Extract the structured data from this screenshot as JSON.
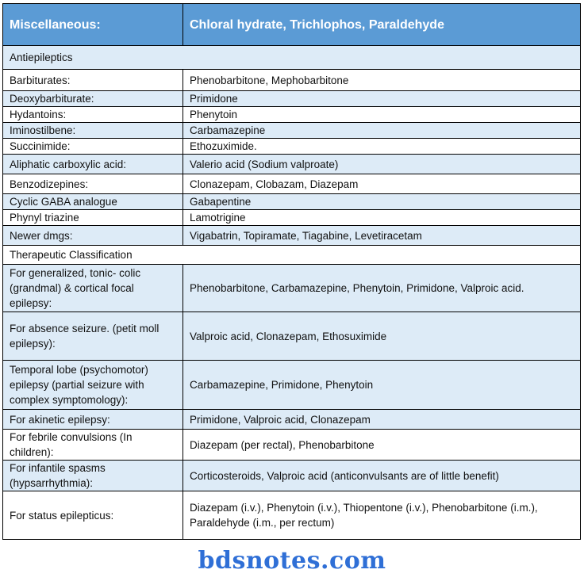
{
  "header": {
    "left": "Miscellaneous:",
    "right": "Chloral hydrate, Trichlophos, Paraldehyde"
  },
  "colors": {
    "header_bg": "#5b9bd5",
    "row_light": "#ddebf7",
    "watermark": "#2f6fd6"
  },
  "rows": [
    {
      "section": "Antiepileptics"
    },
    {
      "class": "Barbiturates:",
      "drugs": "Phenobarbitone, Mephobarbitone"
    },
    {
      "class": "Deoxybarbiturate:",
      "drugs": "Primidone"
    },
    {
      "class": "Hydantoins:",
      "drugs": "Phenytoin"
    },
    {
      "class": "Iminostilbene:",
      "drugs": "Carbamazepine"
    },
    {
      "class": "Succinimide:",
      "drugs": "Ethozuximide."
    },
    {
      "class": "Aliphatic carboxylic acid:",
      "drugs": "Valerio acid (Sodium valproate)"
    },
    {
      "class": "Benzodizepines:",
      "drugs": "Clonazepam, Clobazam, Diazepam"
    },
    {
      "class": "Cyclic GABA analogue",
      "drugs": "Gabapentine"
    },
    {
      "class": "Phynyl triazine",
      "drugs": "Lamotrigine"
    },
    {
      "class": "Newer dmgs:",
      "drugs": "Vigabatrin, Topiramate, Tiagabine, Levetiracetam"
    },
    {
      "section": "Therapeutic Classification"
    },
    {
      "class": "For generalized, tonic- colic (grandmal) & cortical focal epilepsy:",
      "drugs": "Phenobarbitone, Carbamazepine, Phenytoin, Primidone, Valproic acid."
    },
    {
      "class": "For absence seizure. (petit moll epilepsy):",
      "drugs": "Valproic acid, Clonazepam, Ethosuximide"
    },
    {
      "class": "Temporal lobe (psychomotor) epilepsy (partial seizure with complex symptomology):",
      "drugs": "Carbamazepine, Primidone, Phenytoin"
    },
    {
      "class": "For akinetic epilepsy:",
      "drugs": "Primidone, Valproic acid, Clonazepam"
    },
    {
      "class": "For febrile convulsions (In children):",
      "drugs": "Diazepam (per rectal), Phenobarbitone"
    },
    {
      "class": "For infantile spasms (hypsarrhythmia):",
      "drugs": "Corticosteroids, Valproic acid (anticonvulsants are of little benefit)"
    },
    {
      "class": "For status epilepticus:",
      "drugs": "Diazepam (i.v.), Phenytoin (i.v.), Thiopentone (i.v.), Phenobarbitone (i.m.), Paraldehyde (i.m., per rectum)"
    }
  ],
  "watermark": "bdsnotes.com"
}
